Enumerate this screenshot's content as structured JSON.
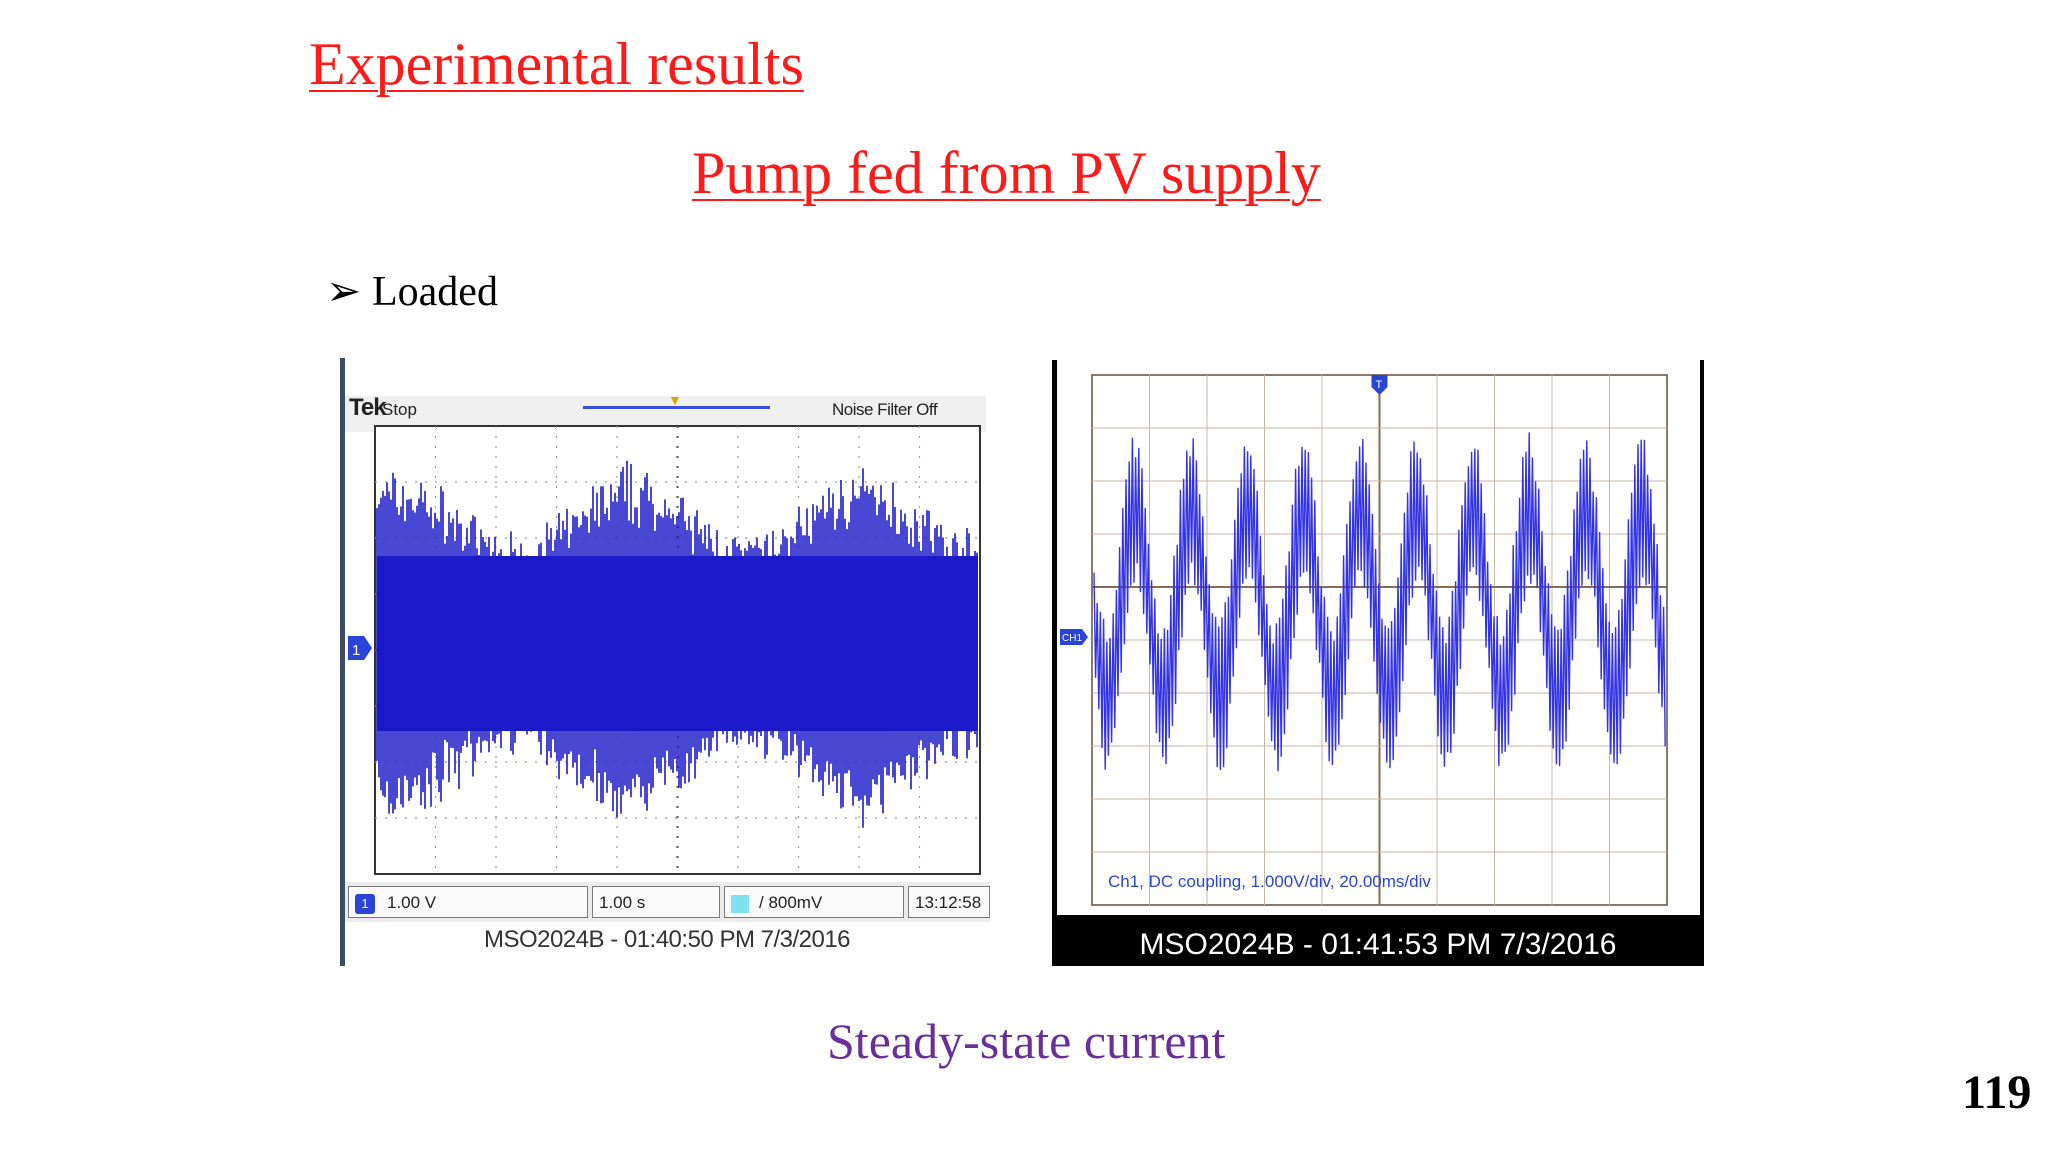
{
  "slide": {
    "title": "Experimental results",
    "subtitle": "Pump fed from PV supply",
    "bullet": "Loaded",
    "caption": "Steady-state current",
    "page_number": "119"
  },
  "scope_left": {
    "brand": "Tek",
    "state": "Stop",
    "filter": "Noise Filter Off",
    "channel_marker": "1",
    "channel_scale": "1.00 V",
    "time_scale": "1.00 s",
    "trigger_level": "/ 800mV",
    "clock": "13:12:58",
    "footer": "MSO2024B - 01:40:50 PM   7/3/2016",
    "trace_color": "#1a1ac8"
  },
  "scope_right": {
    "trigger_marker": "T",
    "channel_marker": "CH1",
    "info": "Ch1, DC coupling, 1.000V/div, 20.00ms/div",
    "footer": "MSO2024B - 01:41:53 PM   7/3/2016",
    "trace_color": "#3333e6",
    "grid_color": "#c9b6a6"
  }
}
